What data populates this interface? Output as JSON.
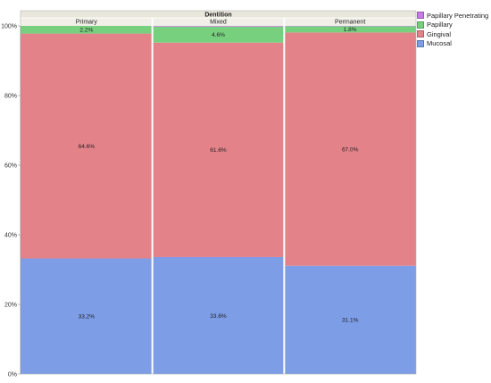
{
  "chart_data": {
    "type": "bar",
    "stacked": true,
    "proportional_width": true,
    "title": "Dentition",
    "categories": [
      "Primary",
      "Mixed",
      "Permanent"
    ],
    "series": [
      {
        "name": "Mucosal",
        "color": "#7d9de6",
        "values": [
          33.2,
          33.6,
          31.1
        ],
        "labels": [
          "33.2%",
          "33.6%",
          "31.1%"
        ]
      },
      {
        "name": "Gingival",
        "color": "#e4828a",
        "values": [
          64.6,
          61.6,
          67.0
        ],
        "labels": [
          "64.6%",
          "61.6%",
          "67.0%"
        ]
      },
      {
        "name": "Papillary",
        "color": "#77d07e",
        "values": [
          2.2,
          4.6,
          1.8
        ],
        "labels": [
          "2.2%",
          "4.6%",
          "1.8%"
        ]
      },
      {
        "name": "Papillary Penetrating",
        "color": "#c77be6",
        "values": [
          0,
          0.2,
          0.1
        ],
        "labels": [
          "",
          "",
          ""
        ]
      }
    ],
    "column_weights": [
      1,
      1,
      1
    ],
    "y_ticks": [
      "0%",
      "20%",
      "40%",
      "60%",
      "80%",
      "100%"
    ],
    "ylim": [
      0,
      100
    ],
    "grid": false,
    "legend_position": "right",
    "legend_order": [
      "Papillary Penetrating",
      "Papillary",
      "Gingival",
      "Mucosal"
    ]
  }
}
